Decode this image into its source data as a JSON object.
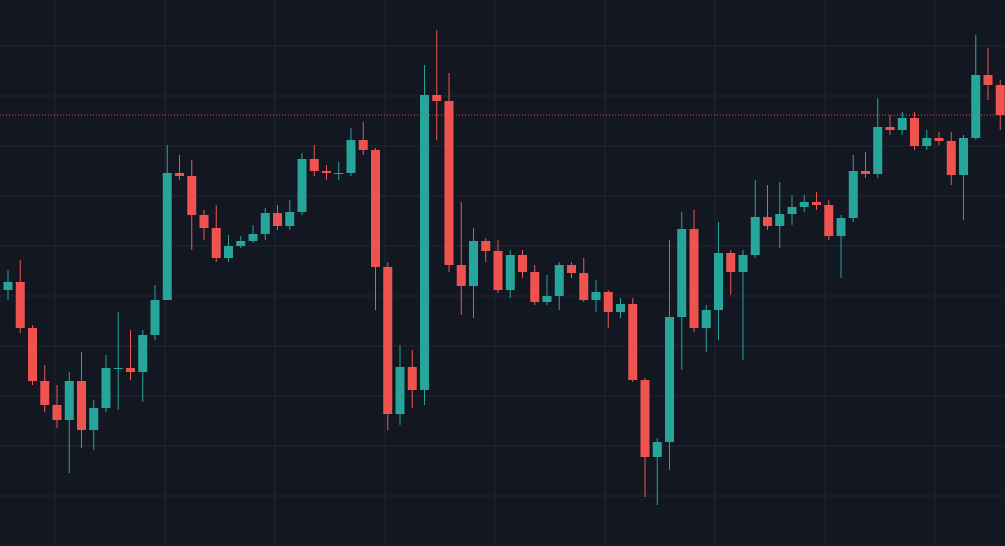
{
  "chart_data": {
    "type": "candlestick",
    "up_color": "#26a69a",
    "down_color": "#ef5350",
    "grid": true,
    "last_price_line": true,
    "ylim": [
      0,
      54.6
    ],
    "yticks": [
      5,
      10,
      15,
      20,
      25,
      30,
      35,
      40,
      45,
      50
    ],
    "open": [
      25.6,
      26.4,
      21.8,
      16.5,
      14.1,
      12.6,
      16.5,
      11.6,
      13.8,
      17.7,
      17.8,
      17.4,
      21.1,
      24.6,
      37.3,
      37.0,
      33.1,
      31.8,
      28.8,
      30.0,
      30.5,
      31.2,
      33.3,
      32.0,
      33.4,
      38.7,
      37.5,
      37.2,
      37.3,
      40.6,
      39.6,
      27.9,
      13.2,
      17.9,
      15.6,
      45.1,
      44.5,
      28.1,
      26.0,
      30.5,
      29.5,
      25.6,
      29.1,
      27.4,
      24.4,
      25.0,
      28.1,
      27.3,
      24.6,
      25.4,
      23.4,
      24.2,
      16.6,
      8.9,
      10.4,
      22.9,
      31.7,
      21.8,
      23.6,
      29.3,
      27.4,
      29.1,
      32.9,
      32.0,
      33.2,
      33.9,
      34.4,
      34.1,
      31.0,
      32.8,
      37.5,
      37.2,
      41.9,
      41.6,
      42.8,
      40.0,
      40.8,
      40.5,
      37.1,
      40.8,
      47.1,
      46.1
    ],
    "high": [
      27.6,
      28.6,
      22.1,
      18.1,
      16.1,
      17.4,
      19.4,
      14.6,
      19.1,
      23.4,
      21.6,
      21.6,
      26.1,
      40.1,
      39.1,
      38.6,
      33.6,
      34.1,
      31.1,
      31.0,
      32.1,
      33.8,
      34.1,
      34.6,
      39.3,
      40.1,
      38.1,
      38.4,
      41.8,
      42.4,
      39.8,
      28.4,
      20.1,
      19.6,
      48.1,
      51.6,
      47.3,
      34.4,
      31.8,
      30.8,
      30.6,
      29.6,
      29.6,
      28.1,
      27.1,
      28.4,
      28.4,
      28.8,
      26.6,
      25.6,
      24.8,
      24.8,
      16.8,
      10.8,
      30.6,
      33.4,
      33.6,
      24.1,
      32.4,
      29.6,
      29.6,
      36.6,
      36.1,
      36.4,
      35.1,
      35.1,
      35.4,
      34.6,
      33.1,
      39.1,
      39.4,
      44.8,
      43.1,
      43.4,
      43.4,
      41.6,
      41.4,
      41.4,
      41.1,
      51.1,
      49.8,
      46.6
    ],
    "low": [
      24.6,
      21.3,
      16.1,
      13.4,
      11.8,
      7.3,
      9.8,
      9.6,
      13.4,
      13.6,
      16.6,
      14.4,
      20.6,
      24.6,
      36.6,
      29.6,
      30.6,
      28.4,
      28.4,
      29.8,
      30.3,
      30.6,
      31.6,
      31.6,
      33.1,
      37.0,
      36.6,
      36.6,
      37.0,
      39.1,
      23.6,
      11.6,
      12.1,
      13.8,
      14.1,
      40.6,
      27.4,
      23.1,
      22.8,
      28.4,
      25.3,
      24.8,
      26.8,
      24.1,
      24.1,
      23.6,
      26.8,
      24.4,
      23.4,
      21.8,
      22.8,
      16.4,
      4.9,
      4.1,
      7.6,
      17.6,
      21.4,
      19.4,
      20.6,
      25.1,
      18.6,
      28.8,
      31.6,
      29.8,
      32.1,
      33.4,
      33.6,
      30.6,
      26.8,
      32.4,
      36.8,
      36.8,
      41.1,
      41.1,
      39.6,
      39.6,
      40.1,
      36.1,
      32.6,
      40.6,
      44.6,
      41.6
    ],
    "close": [
      26.4,
      21.8,
      16.5,
      14.1,
      12.6,
      16.5,
      11.6,
      13.8,
      17.8,
      17.8,
      17.4,
      21.1,
      24.6,
      37.3,
      37.0,
      33.1,
      31.8,
      28.8,
      30.0,
      30.5,
      31.2,
      33.3,
      32.0,
      33.4,
      38.7,
      37.5,
      37.3,
      37.3,
      40.6,
      39.6,
      27.9,
      13.2,
      17.9,
      15.6,
      45.1,
      44.5,
      28.1,
      26.0,
      30.5,
      29.5,
      25.6,
      29.1,
      27.4,
      24.4,
      25.0,
      28.1,
      27.3,
      24.6,
      25.4,
      23.4,
      24.2,
      16.6,
      8.9,
      10.4,
      22.9,
      31.7,
      21.8,
      23.6,
      29.3,
      27.4,
      29.1,
      32.9,
      32.0,
      33.2,
      33.9,
      34.4,
      34.1,
      31.0,
      32.8,
      37.5,
      37.2,
      41.9,
      41.6,
      42.8,
      40.0,
      40.8,
      40.5,
      37.1,
      40.8,
      47.1,
      46.1,
      43.1
    ]
  }
}
